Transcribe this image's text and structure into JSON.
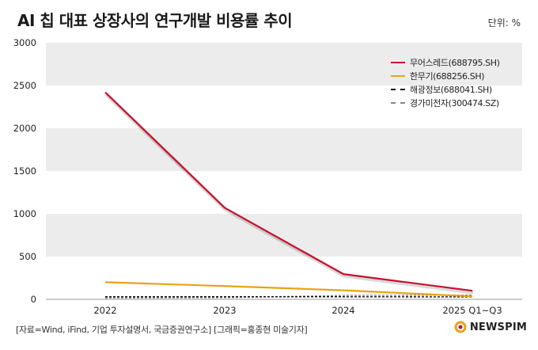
{
  "title": "AI 칩 대표 상장사의 연구개발 비용률 추이",
  "unit": "단위: %",
  "source": "[자료=Wind, iFind, 기업 투자설명서, 국금증권연구소] [그래픽=홍종현 미술기자]",
  "brand": "NEWSPIM",
  "colors": {
    "moore": "#c8102e",
    "hanwuji": "#e8a317",
    "haiguang": "#111111",
    "jingjia": "#888888",
    "band": "#ececec"
  },
  "chart_data": {
    "type": "line",
    "categories": [
      "2022",
      "2023",
      "2024",
      "2025 Q1~Q3"
    ],
    "ylim": [
      0,
      3000
    ],
    "yticks": [
      "0",
      "500",
      "1000",
      "1500",
      "2000",
      "2500",
      "3000"
    ],
    "grid": "alternating horizontal bands",
    "legend_position": "top-right",
    "series": [
      {
        "name": "무어스레드(688795.SH)",
        "values": [
          2420,
          1070,
          295,
          100
        ],
        "style": "solid"
      },
      {
        "name": "한무기(688256.SH)",
        "values": [
          200,
          155,
          105,
          35
        ],
        "style": "solid"
      },
      {
        "name": "해광정보(688041.SH)",
        "values": [
          30,
          30,
          30,
          28
        ],
        "style": "dashed"
      },
      {
        "name": "경가미전자(300474.SZ)",
        "values": [
          15,
          20,
          45,
          50
        ],
        "style": "dashed"
      }
    ]
  }
}
